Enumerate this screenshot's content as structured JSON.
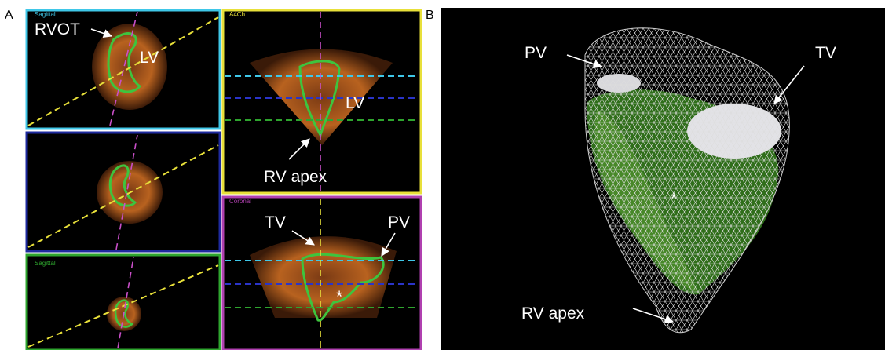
{
  "panel_a": {
    "label": "A",
    "views": [
      {
        "title": "Sagittal",
        "labels": [
          "RVOT",
          "LV"
        ]
      },
      {
        "title": "A4Ch",
        "labels": [
          "LV",
          "RV apex"
        ]
      },
      {
        "title": "Coronal",
        "labels": [
          "TV",
          "PV",
          "*"
        ]
      },
      {
        "title": "Sagittal"
      }
    ]
  },
  "panel_b": {
    "label": "B",
    "labels": [
      "PV",
      "TV",
      "*",
      "RV apex"
    ]
  }
}
